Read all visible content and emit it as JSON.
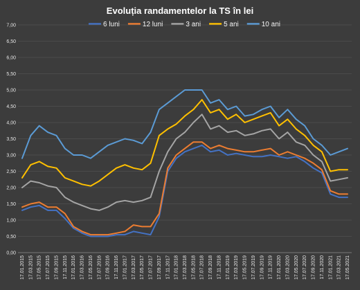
{
  "chart_data": {
    "type": "line",
    "title": "Evoluția  randamentelor  la TS în lei",
    "xlabel": "",
    "ylabel": "",
    "ylim": [
      0,
      7
    ],
    "yticks": [
      "0,00",
      "0,50",
      "1,00",
      "1,50",
      "2,00",
      "2,50",
      "3,00",
      "3,50",
      "4,00",
      "4,50",
      "5,00",
      "5,50",
      "6,00",
      "6,50",
      "7,00"
    ],
    "grid": true,
    "legend_position": "top",
    "x_tick_labels": [
      "17.01.2015",
      "17.03.2015",
      "17.05.2015",
      "17.07.2015",
      "17.09.2015",
      "17.11.2015",
      "17.01.2016",
      "17.03.2016",
      "17.05.2016",
      "17.07.2016",
      "17.09.2016",
      "17.11.2016",
      "17.01.2017",
      "17.03.2017",
      "17.05.2017",
      "17.07.2017",
      "17.09.2017",
      "17.11.2017",
      "17.01.2018",
      "17.03.2018",
      "17.05.2018",
      "17.07.2018",
      "17.09.2018",
      "17.11.2018",
      "17.01.2019",
      "17.03.2019",
      "17.05.2019",
      "17.07.2019",
      "17.09.2019",
      "17.11.2019",
      "17.01.2020",
      "17.03.2020",
      "17.05.2020",
      "17.07.2020",
      "17.09.2020",
      "17.11.2020",
      "17.01.2021",
      "17.03.2021",
      "17.05.2021"
    ],
    "series": [
      {
        "name": "6 luni",
        "color": "#4472c4",
        "values": [
          1.3,
          1.4,
          1.45,
          1.3,
          1.3,
          1.05,
          0.75,
          0.6,
          0.5,
          0.5,
          0.5,
          0.55,
          0.55,
          0.65,
          0.6,
          0.55,
          1.1,
          2.5,
          2.9,
          3.1,
          3.2,
          3.3,
          3.1,
          3.15,
          3.0,
          3.05,
          3.0,
          2.95,
          2.95,
          3.0,
          2.95,
          2.9,
          2.95,
          2.8,
          2.6,
          2.45,
          1.8,
          1.7,
          1.7
        ]
      },
      {
        "name": "12 luni",
        "color": "#ed7d31",
        "values": [
          1.4,
          1.5,
          1.55,
          1.4,
          1.4,
          1.2,
          0.8,
          0.65,
          0.55,
          0.55,
          0.55,
          0.6,
          0.65,
          0.85,
          0.8,
          0.8,
          1.2,
          2.6,
          3.0,
          3.2,
          3.4,
          3.4,
          3.2,
          3.3,
          3.2,
          3.15,
          3.1,
          3.1,
          3.15,
          3.2,
          3.0,
          3.1,
          3.0,
          2.9,
          2.75,
          2.55,
          1.9,
          1.8,
          1.8
        ]
      },
      {
        "name": "3 ani",
        "color": "#a5a5a5",
        "values": [
          2.0,
          2.2,
          2.15,
          2.05,
          2.0,
          1.7,
          1.55,
          1.45,
          1.35,
          1.3,
          1.4,
          1.55,
          1.6,
          1.55,
          1.6,
          1.7,
          2.5,
          3.1,
          3.5,
          3.7,
          4.0,
          4.25,
          3.8,
          3.9,
          3.7,
          3.75,
          3.6,
          3.65,
          3.75,
          3.8,
          3.5,
          3.7,
          3.4,
          3.3,
          3.0,
          2.8,
          2.2,
          2.25,
          2.3
        ]
      },
      {
        "name": "5 ani",
        "color": "#ffc000",
        "values": [
          2.3,
          2.7,
          2.8,
          2.65,
          2.6,
          2.3,
          2.2,
          2.1,
          2.05,
          2.2,
          2.4,
          2.6,
          2.7,
          2.6,
          2.55,
          2.75,
          3.6,
          3.8,
          3.95,
          4.2,
          4.4,
          4.7,
          4.3,
          4.4,
          4.1,
          4.25,
          4.0,
          4.1,
          4.2,
          4.3,
          3.9,
          4.1,
          3.8,
          3.6,
          3.3,
          3.1,
          2.5,
          2.55,
          2.55
        ]
      },
      {
        "name": "10 ani",
        "color": "#5b9bd5",
        "values": [
          2.9,
          3.6,
          3.9,
          3.7,
          3.6,
          3.2,
          3.0,
          3.0,
          2.9,
          3.1,
          3.3,
          3.4,
          3.5,
          3.45,
          3.35,
          3.7,
          4.4,
          4.6,
          4.8,
          5.0,
          5.0,
          5.0,
          4.6,
          4.7,
          4.4,
          4.5,
          4.2,
          4.25,
          4.4,
          4.5,
          4.15,
          4.4,
          4.1,
          3.9,
          3.5,
          3.3,
          3.0,
          3.1,
          3.2
        ]
      }
    ]
  }
}
